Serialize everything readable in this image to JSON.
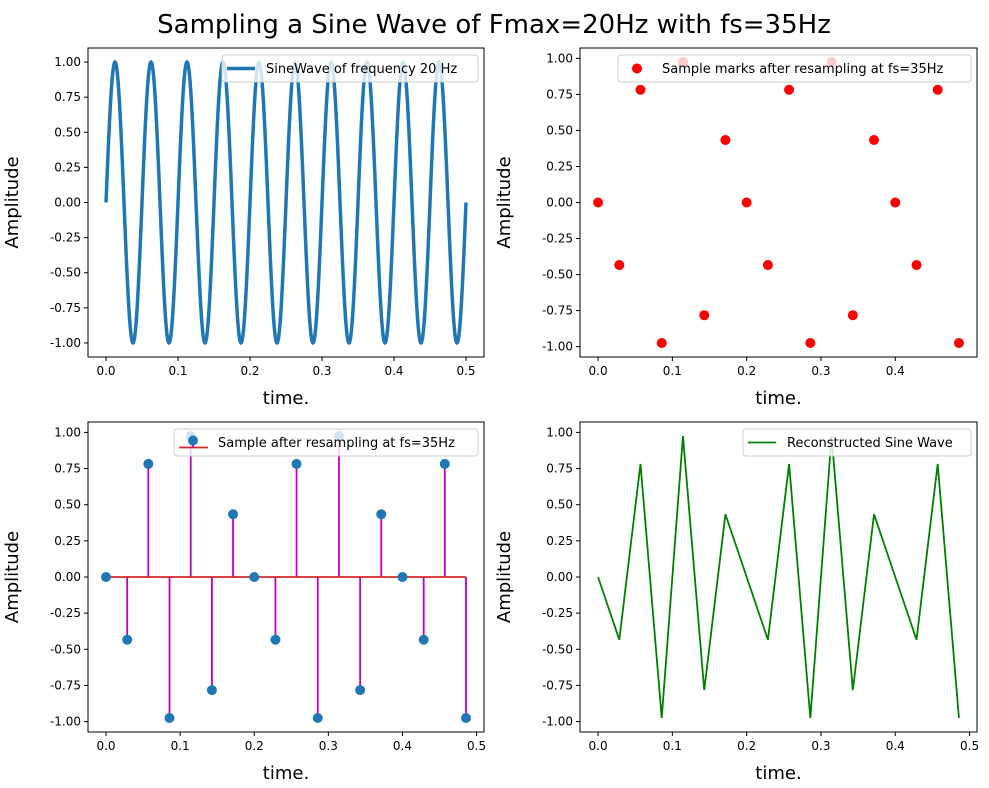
{
  "title": "Sampling a Sine Wave of Fmax=20Hz with fs=35Hz",
  "colors": {
    "sine": "#1f77b4",
    "marks": "#ff0000",
    "stem_line": "#bf00bf",
    "stem_marker": "#1f77b4",
    "baseline": "#d62728",
    "recon": "#008000"
  },
  "chart_data": [
    {
      "type": "line",
      "legend": "SineWave of frequency 20 Hz",
      "legend_placement": "top-right",
      "xlabel": "time.",
      "ylabel": "Amplitude",
      "xlim": [
        -0.025,
        0.525
      ],
      "ylim": [
        -1.1,
        1.1
      ],
      "xticks": [
        "0.0",
        "0.1",
        "0.2",
        "0.3",
        "0.4",
        "0.5"
      ],
      "yticks": [
        "-1.00",
        "-0.75",
        "-0.50",
        "-0.25",
        "0.00",
        "0.25",
        "0.50",
        "0.75",
        "1.00"
      ],
      "function": {
        "kind": "sine",
        "frequency_hz": 20,
        "amplitude": 1,
        "t_range": [
          0,
          0.5
        ],
        "points": 1000
      }
    },
    {
      "type": "scatter",
      "legend": "Sample marks after resampling at fs=35Hz",
      "legend_placement": "top-right",
      "xlabel": "time.",
      "ylabel": "Amplitude",
      "xlim": [
        -0.0243,
        0.51
      ],
      "ylim": [
        -1.072,
        1.072
      ],
      "xticks": [
        "0.0",
        "0.1",
        "0.2",
        "0.3",
        "0.4"
      ],
      "yticks": [
        "-1.00",
        "-0.75",
        "-0.50",
        "-0.25",
        "0.00",
        "0.25",
        "0.50",
        "0.75",
        "1.00"
      ]
    },
    {
      "type": "stem",
      "legend": "Sample after resampling at fs=35Hz",
      "legend_placement": "top-right",
      "xlabel": "time.",
      "ylabel": "Amplitude",
      "xlim": [
        -0.0243,
        0.51
      ],
      "ylim": [
        -1.072,
        1.072
      ],
      "xticks": [
        "0.0",
        "0.1",
        "0.2",
        "0.3",
        "0.4",
        "0.5"
      ],
      "yticks": [
        "-1.00",
        "-0.75",
        "-0.50",
        "-0.25",
        "0.00",
        "0.25",
        "0.50",
        "0.75",
        "1.00"
      ]
    },
    {
      "type": "line",
      "legend": "Reconstructed Sine Wave",
      "legend_placement": "top-right",
      "xlabel": "time.",
      "ylabel": "Amplitude",
      "xlim": [
        -0.0243,
        0.51
      ],
      "ylim": [
        -1.072,
        1.072
      ],
      "xticks": [
        "0.0",
        "0.1",
        "0.2",
        "0.3",
        "0.4",
        "0.5"
      ],
      "yticks": [
        "-1.00",
        "-0.75",
        "-0.50",
        "-0.25",
        "0.00",
        "0.25",
        "0.50",
        "0.75",
        "1.00"
      ]
    }
  ],
  "samples": {
    "t": [
      0,
      0.0286,
      0.0571,
      0.0857,
      0.1143,
      0.1429,
      0.1714,
      0.2,
      0.2286,
      0.2571,
      0.2857,
      0.3143,
      0.3429,
      0.3714,
      0.4,
      0.4286,
      0.4571,
      0.4857
    ],
    "y": [
      0,
      -0.434,
      0.782,
      -0.975,
      0.975,
      -0.782,
      0.434,
      0,
      -0.434,
      0.782,
      -0.975,
      0.975,
      -0.782,
      0.434,
      0,
      -0.434,
      0.782,
      -0.975
    ]
  }
}
